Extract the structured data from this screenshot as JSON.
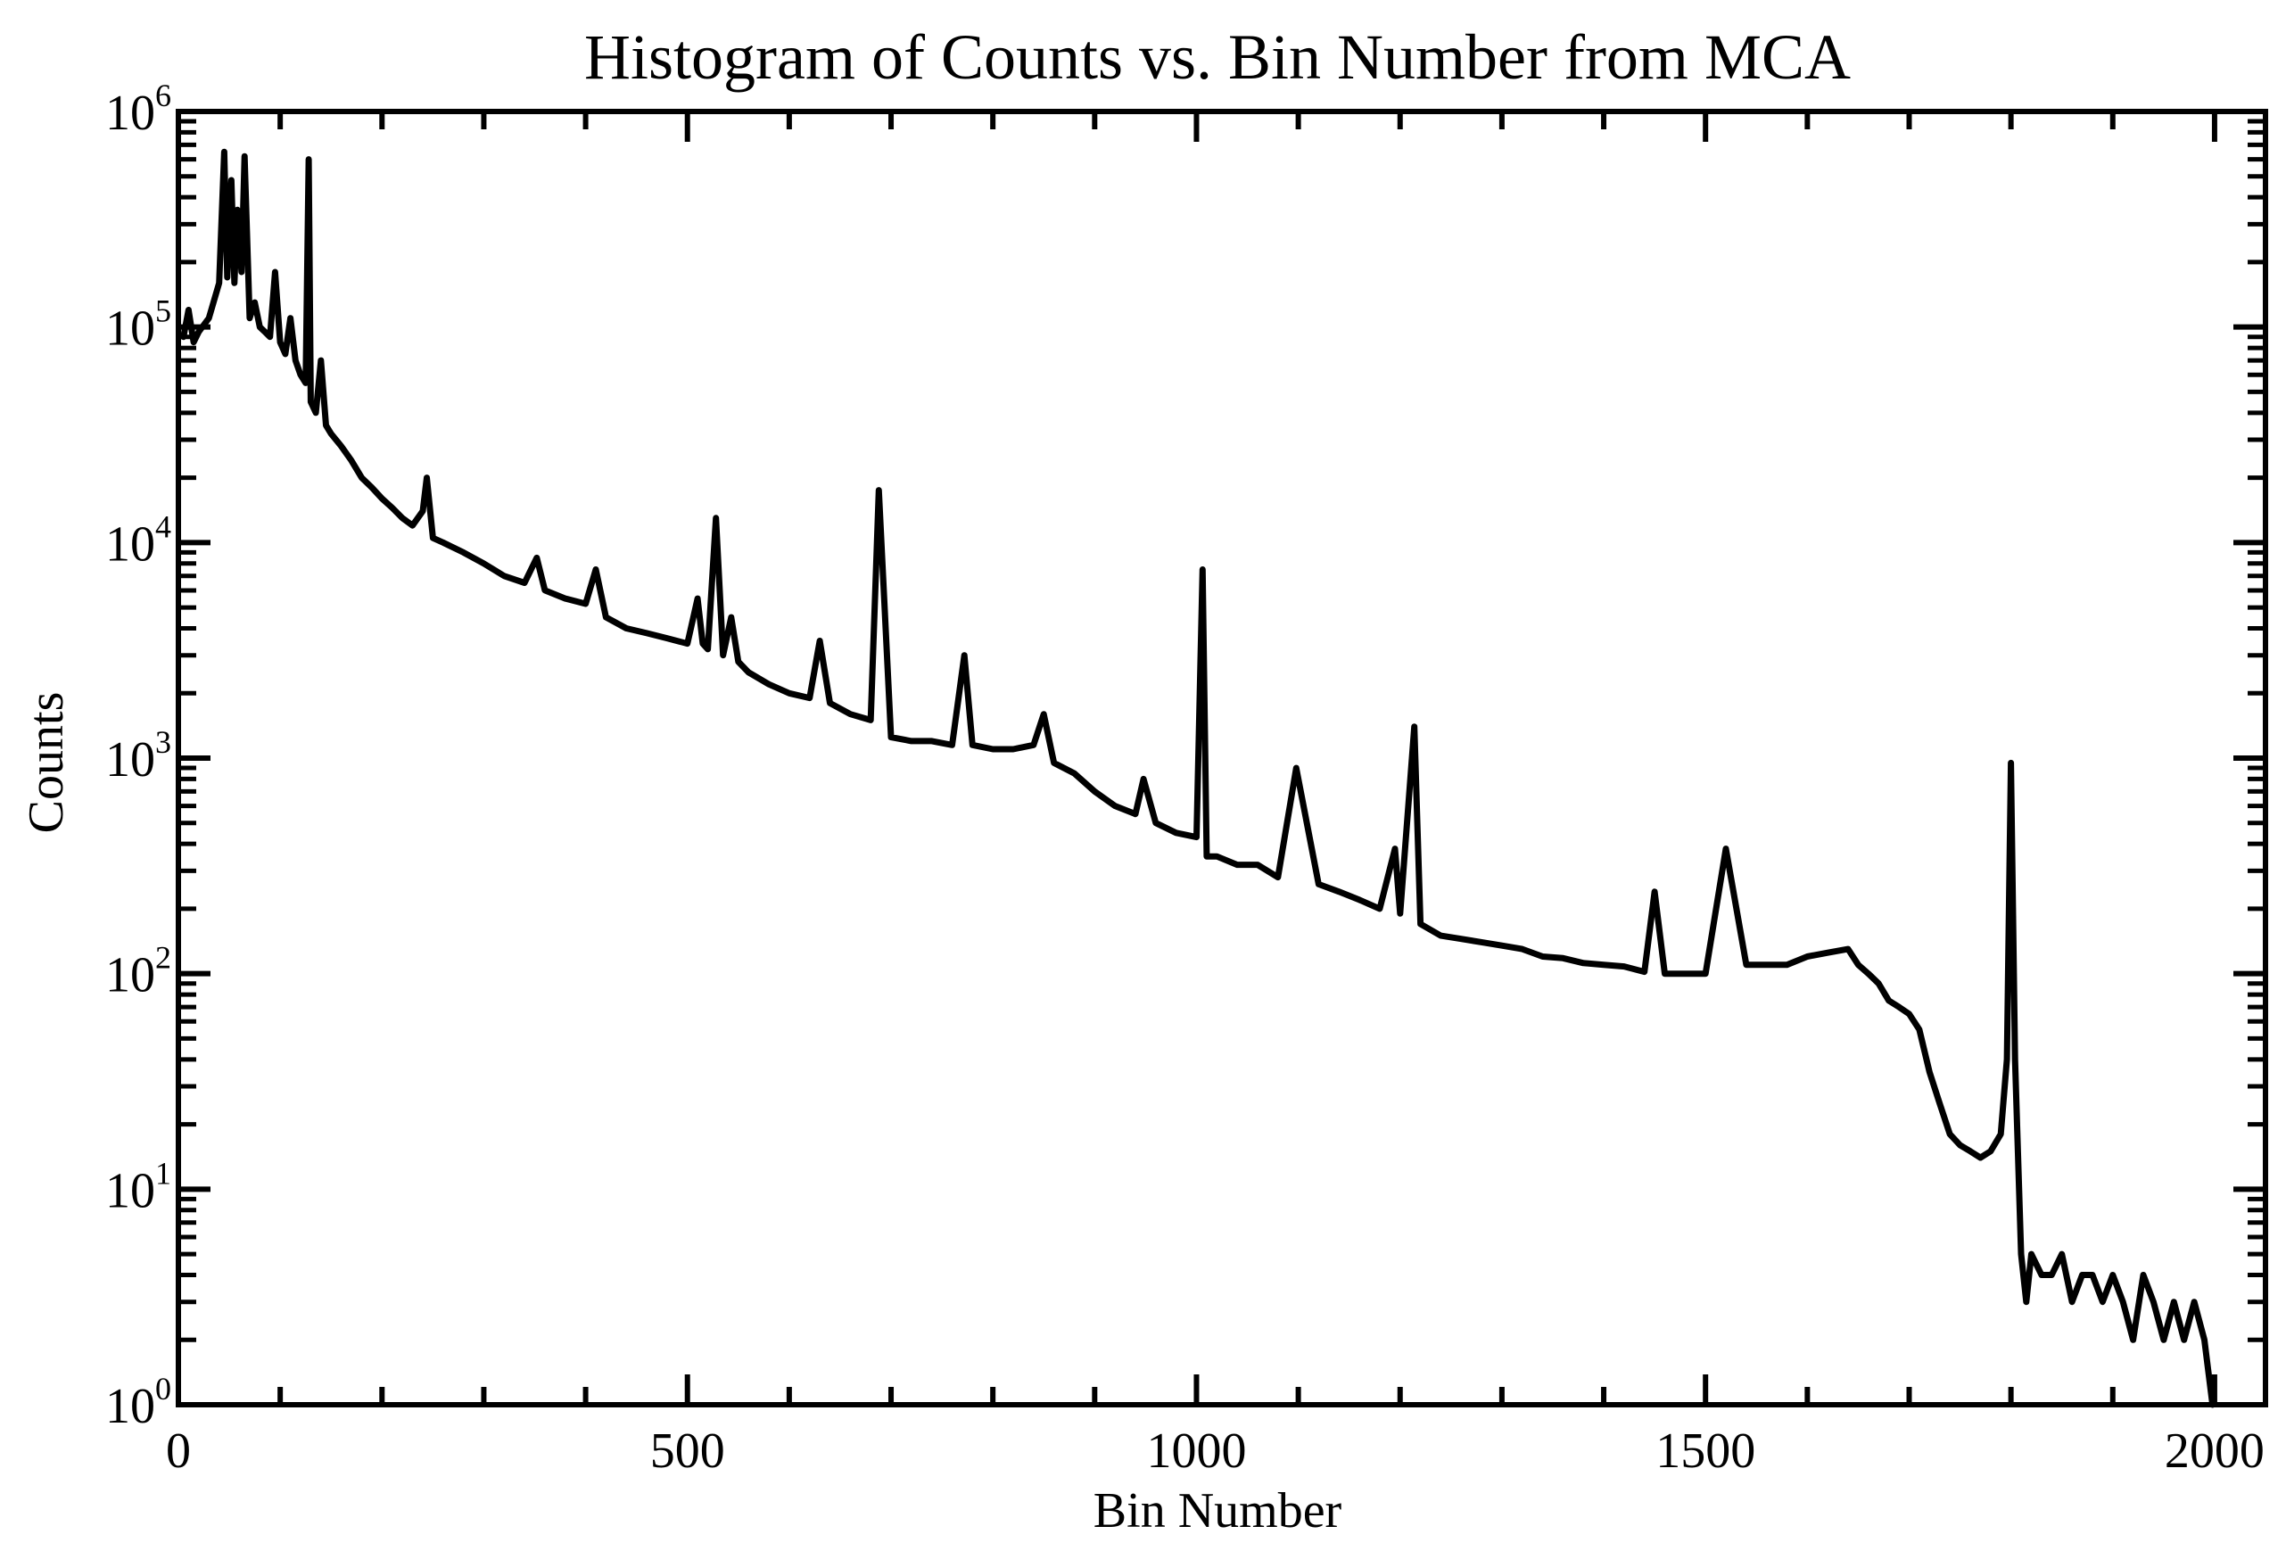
{
  "chart_data": {
    "type": "line",
    "title": "Histogram of Counts vs. Bin Number from MCA",
    "xlabel": "Bin Number",
    "ylabel": "Counts",
    "xlim": [
      0,
      2050
    ],
    "ylim": [
      1,
      1000000
    ],
    "yscale": "log",
    "grid": false,
    "line_color": "#000000",
    "x_ticks": [
      {
        "value": 0,
        "label": "0"
      },
      {
        "value": 500,
        "label": "500"
      },
      {
        "value": 1000,
        "label": "1000"
      },
      {
        "value": 1500,
        "label": "1500"
      },
      {
        "value": 2000,
        "label": "2000"
      }
    ],
    "y_ticks": [
      {
        "value": 1,
        "base": "10",
        "exp": "0"
      },
      {
        "value": 10,
        "base": "10",
        "exp": "1"
      },
      {
        "value": 100,
        "base": "10",
        "exp": "2"
      },
      {
        "value": 1000,
        "base": "10",
        "exp": "3"
      },
      {
        "value": 10000,
        "base": "10",
        "exp": "4"
      },
      {
        "value": 100000,
        "base": "10",
        "exp": "5"
      },
      {
        "value": 1000000,
        "base": "10",
        "exp": "6"
      }
    ],
    "series": [
      {
        "x": [
          5,
          10,
          15,
          20,
          30,
          40,
          45,
          48,
          52,
          55,
          58,
          62,
          65,
          70,
          75,
          80,
          85,
          90,
          95,
          100,
          105,
          110,
          115,
          120,
          125,
          128,
          130,
          135,
          140,
          145,
          150,
          160,
          170,
          180,
          190,
          200,
          210,
          220,
          230,
          240,
          244,
          250,
          260,
          280,
          300,
          320,
          340,
          352,
          360,
          380,
          400,
          410,
          420,
          440,
          460,
          480,
          500,
          510,
          515,
          520,
          528,
          535,
          543,
          550,
          560,
          580,
          600,
          620,
          630,
          640,
          660,
          680,
          688,
          700,
          720,
          740,
          760,
          772,
          780,
          800,
          820,
          840,
          850,
          860,
          880,
          900,
          920,
          940,
          948,
          960,
          980,
          1000,
          1006,
          1010,
          1020,
          1040,
          1060,
          1080,
          1098,
          1120,
          1140,
          1160,
          1180,
          1195,
          1200,
          1214,
          1220,
          1240,
          1260,
          1280,
          1300,
          1320,
          1340,
          1360,
          1380,
          1400,
          1420,
          1440,
          1450,
          1460,
          1480,
          1500,
          1520,
          1540,
          1560,
          1580,
          1600,
          1620,
          1640,
          1650,
          1660,
          1670,
          1680,
          1690,
          1700,
          1710,
          1720,
          1730,
          1740,
          1750,
          1760,
          1770,
          1780,
          1790,
          1796,
          1800,
          1804,
          1810,
          1815,
          1820,
          1830,
          1840,
          1850,
          1860,
          1870,
          1880,
          1890,
          1900,
          1910,
          1920,
          1930,
          1940,
          1950,
          1960,
          1970,
          1980,
          1990,
          1998
        ],
        "y": [
          90000,
          120000,
          85000,
          95000,
          110000,
          160000,
          650000,
          170000,
          480000,
          160000,
          350000,
          180000,
          620000,
          110000,
          130000,
          100000,
          95000,
          90000,
          180000,
          85000,
          75000,
          110000,
          70000,
          60000,
          55000,
          600000,
          45000,
          40000,
          70000,
          35000,
          32000,
          28000,
          24000,
          20000,
          18000,
          16000,
          14500,
          13000,
          12000,
          14000,
          20000,
          10500,
          10000,
          9000,
          8000,
          7000,
          6500,
          8500,
          6000,
          5500,
          5200,
          7500,
          4500,
          4000,
          3800,
          3600,
          3400,
          5500,
          3400,
          3200,
          13000,
          3000,
          4500,
          2800,
          2500,
          2200,
          2000,
          1900,
          3500,
          1800,
          1600,
          1500,
          17500,
          1250,
          1200,
          1200,
          1150,
          3000,
          1150,
          1100,
          1100,
          1150,
          1600,
          950,
          850,
          700,
          600,
          550,
          800,
          500,
          450,
          430,
          7500,
          350,
          350,
          320,
          320,
          280,
          900,
          260,
          240,
          220,
          200,
          380,
          190,
          1400,
          170,
          150,
          145,
          140,
          135,
          130,
          120,
          118,
          112,
          110,
          108,
          102,
          240,
          100,
          100,
          100,
          380,
          110,
          110,
          110,
          120,
          125,
          130,
          110,
          100,
          90,
          75,
          70,
          65,
          55,
          35,
          25,
          18,
          16,
          15,
          14,
          15,
          18,
          40,
          950,
          40,
          5,
          3,
          5,
          4,
          4,
          5,
          3,
          4,
          4,
          3,
          4,
          3,
          2,
          4,
          3,
          2,
          3,
          2,
          3,
          2,
          1
        ]
      }
    ]
  }
}
